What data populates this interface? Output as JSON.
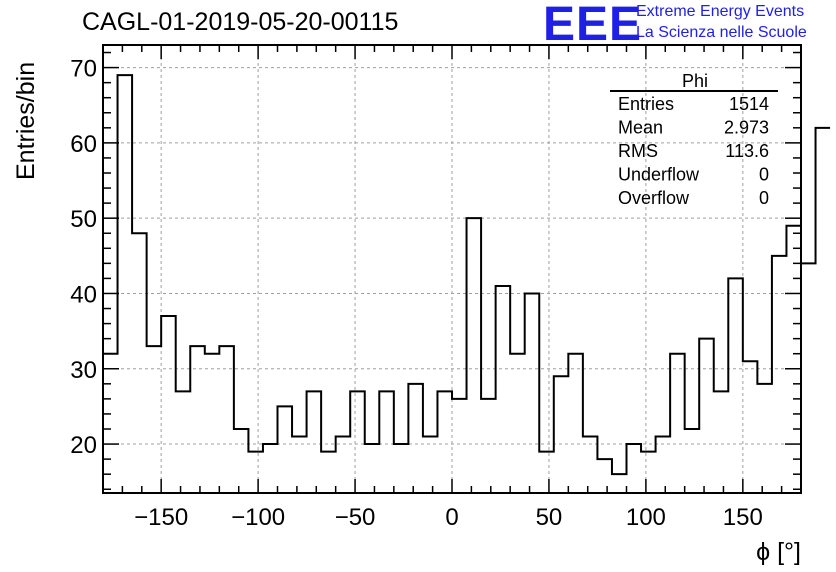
{
  "header": {
    "run_title": "CAGL-01-2019-05-20-00115",
    "logo_text": "EEE",
    "logo_line1": "Extreme Energy Events",
    "logo_line2": "La Scienza nelle Scuole"
  },
  "stats": {
    "title": "Phi",
    "rows": [
      {
        "label": "Entries",
        "value": "1514"
      },
      {
        "label": "Mean",
        "value": "2.973"
      },
      {
        "label": "RMS",
        "value": "113.6"
      },
      {
        "label": "Underflow",
        "value": "0"
      },
      {
        "label": "Overflow",
        "value": "0"
      }
    ]
  },
  "colors": {
    "line": "#000000",
    "grid": "#a0a0a0",
    "logo": "#1f1fe6"
  },
  "chart_data": {
    "type": "histogram",
    "xlabel": "ϕ [°]",
    "ylabel": "Entries/bin",
    "xlim": [
      -180,
      180
    ],
    "ylim": [
      13.5,
      73
    ],
    "bin_width": 7.5,
    "grid": true,
    "x_ticks": [
      -150,
      -100,
      -50,
      0,
      50,
      100,
      150
    ],
    "x_tick_labels": [
      "−150",
      "−100",
      "−50",
      "0",
      "50",
      "100",
      "150"
    ],
    "y_ticks": [
      20,
      30,
      40,
      50,
      60,
      70
    ],
    "y_tick_labels": [
      "20",
      "30",
      "40",
      "50",
      "60",
      "70"
    ],
    "bin_edges_start": -180,
    "values": [
      32,
      69,
      48,
      33,
      37,
      27,
      33,
      32,
      33,
      22,
      19,
      20,
      25,
      21,
      27,
      19,
      21,
      27,
      20,
      27,
      20,
      28,
      21,
      27,
      26,
      50,
      26,
      41,
      32,
      40,
      19,
      29,
      32,
      21,
      18,
      16,
      20,
      19,
      21,
      32,
      22,
      34,
      27,
      42,
      31,
      28,
      45,
      49,
      44,
      62
    ]
  }
}
